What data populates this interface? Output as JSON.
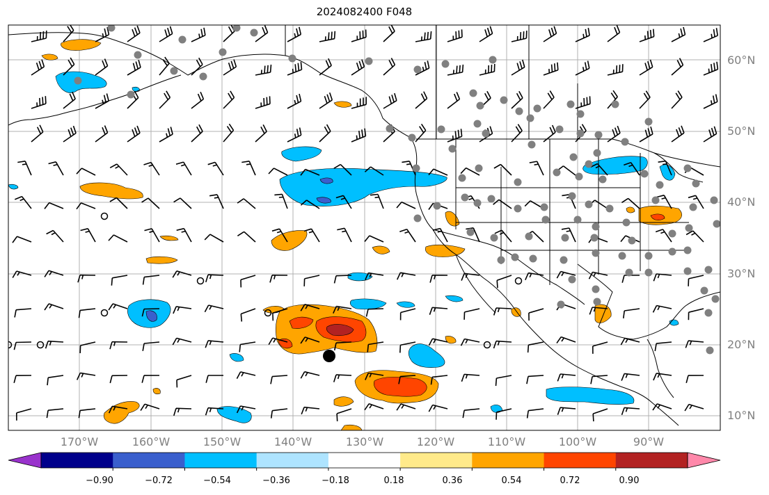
{
  "title": "2024082400 F048",
  "lat_ticks": [
    "60°N",
    "50°N",
    "40°N",
    "30°N",
    "20°N",
    "10°N"
  ],
  "lon_ticks": [
    "170°W",
    "160°W",
    "150°W",
    "140°W",
    "130°W",
    "120°W",
    "110°W",
    "100°W",
    "90°W"
  ],
  "colorbar": {
    "labels": [
      "−0.90",
      "−0.72",
      "−0.54",
      "−0.36",
      "−0.18",
      "0.18",
      "0.36",
      "0.54",
      "0.72",
      "0.90"
    ],
    "colors": [
      "#9932cc",
      "#00008b",
      "#3a5fcd",
      "#00bfff",
      "#aee4ff",
      "#ffffff",
      "#ffea8a",
      "#ffa500",
      "#ff4500",
      "#b22222",
      "#ff88aa"
    ]
  },
  "colors": {
    "grid": "#b0b0b0",
    "coast": "#000000",
    "station": "#808080"
  }
}
